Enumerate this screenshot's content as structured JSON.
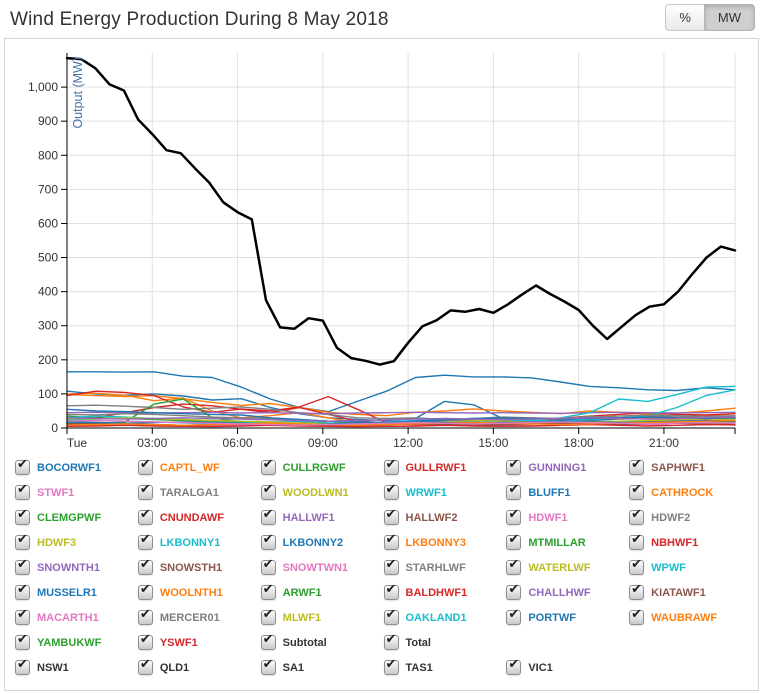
{
  "header": {
    "title": "Wind Energy Production During 8 May 2018",
    "unit_buttons": [
      {
        "label": "%",
        "active": false
      },
      {
        "label": "MW",
        "active": true
      }
    ]
  },
  "chart_data": {
    "type": "line",
    "title": "Wind Energy Production During 8 May 2018",
    "xlabel": "",
    "ylabel": "Output (MW)",
    "ylabel_color": "#4572a7",
    "ylim": [
      0,
      1100
    ],
    "x_end_hour": 23.5,
    "x_tick_hours": [
      0,
      3,
      6,
      9,
      12,
      15,
      18,
      21
    ],
    "x_tick_labels": [
      "Tue",
      "03:00",
      "06:00",
      "09:00",
      "12:00",
      "15:00",
      "18:00",
      "21:00"
    ],
    "y_ticks": [
      0,
      100,
      200,
      300,
      400,
      500,
      600,
      700,
      800,
      900,
      1000
    ],
    "y_tick_labels": [
      "0",
      "100",
      "200",
      "300",
      "400",
      "500",
      "600",
      "700",
      "800",
      "900",
      "1,000"
    ],
    "grid": true,
    "legend_position": "bottom",
    "total_series": {
      "name": "Total",
      "color": "#000000",
      "step_hours": 0.5,
      "values": [
        1085,
        1082,
        1055,
        1008,
        990,
        905,
        862,
        815,
        806,
        762,
        720,
        662,
        633,
        612,
        375,
        295,
        291,
        322,
        315,
        235,
        205,
        197,
        186,
        196,
        250,
        298,
        316,
        345,
        341,
        349,
        338,
        362,
        391,
        418,
        393,
        371,
        346,
        300,
        261,
        296,
        331,
        356,
        363,
        400,
        452,
        500,
        532,
        521
      ]
    },
    "farm_lines": [
      {
        "name": "blue-1",
        "color": "#1f77b4",
        "values": [
          165,
          165,
          164,
          165,
          152,
          148,
          120,
          85,
          60,
          48,
          78,
          108,
          148,
          155,
          150,
          150,
          147,
          135,
          122,
          118,
          112,
          110,
          118,
          112
        ]
      },
      {
        "name": "blue-2",
        "color": "#1f77b4",
        "values": [
          108,
          100,
          96,
          100,
          94,
          82,
          86,
          60,
          42,
          30,
          25,
          22,
          28,
          78,
          68,
          28,
          22,
          24,
          22,
          26,
          28,
          26,
          30,
          28
        ]
      },
      {
        "name": "orange-1",
        "color": "#ff7f0e",
        "values": [
          98,
          95,
          92,
          95,
          86,
          75,
          66,
          72,
          60,
          46,
          40,
          36,
          46,
          50,
          56,
          50,
          46,
          42,
          50,
          46,
          41,
          43,
          50,
          58
        ]
      },
      {
        "name": "orange-2",
        "color": "#ff7f0e",
        "values": [
          100,
          102,
          96,
          80,
          88,
          50,
          30,
          36,
          45,
          30,
          14,
          10,
          16,
          20,
          26,
          30,
          20,
          28,
          35,
          26,
          30,
          25,
          36,
          42
        ]
      },
      {
        "name": "red-1",
        "color": "#d62728",
        "values": [
          95,
          108,
          104,
          95,
          62,
          46,
          56,
          50,
          62,
          92,
          55,
          16,
          12,
          10,
          13,
          10,
          12,
          16,
          25,
          30,
          35,
          30,
          28,
          30
        ]
      },
      {
        "name": "red-2",
        "color": "#d62728",
        "values": [
          22,
          30,
          45,
          60,
          70,
          65,
          55,
          45,
          60,
          40,
          20,
          15,
          10,
          12,
          15,
          18,
          22,
          28,
          35,
          40,
          45,
          40,
          38,
          42
        ]
      },
      {
        "name": "gray-1",
        "color": "#7f7f7f",
        "values": [
          65,
          67,
          64,
          60,
          55,
          58,
          62,
          55,
          45,
          40,
          30,
          28,
          30,
          25,
          28,
          32,
          30,
          25,
          35,
          30,
          32,
          35,
          30,
          32
        ]
      },
      {
        "name": "purple-1",
        "color": "#9467bd",
        "values": [
          45,
          46,
          45,
          44,
          45,
          46,
          44,
          45,
          43,
          42,
          44,
          45,
          46,
          45,
          44,
          45,
          44,
          43,
          45,
          46,
          45,
          44,
          45,
          46
        ]
      },
      {
        "name": "green-1",
        "color": "#2ca02c",
        "values": [
          15,
          12,
          18,
          70,
          85,
          30,
          18,
          12,
          15,
          20,
          15,
          12,
          18,
          15,
          20,
          18,
          15,
          12,
          20,
          15,
          18,
          15,
          20,
          18
        ]
      },
      {
        "name": "green-2",
        "color": "#2ca02c",
        "values": [
          35,
          30,
          28,
          25,
          22,
          20,
          18,
          15,
          12,
          10,
          12,
          15,
          18,
          20,
          22,
          20,
          18,
          15,
          12,
          15,
          18,
          20,
          22,
          20
        ]
      },
      {
        "name": "cyan-1",
        "color": "#17becf",
        "values": [
          25,
          22,
          20,
          18,
          15,
          12,
          15,
          18,
          20,
          15,
          12,
          10,
          12,
          15,
          18,
          20,
          22,
          30,
          45,
          85,
          78,
          98,
          120,
          122
        ]
      },
      {
        "name": "cyan-2",
        "color": "#17becf",
        "values": [
          30,
          35,
          32,
          28,
          25,
          22,
          20,
          18,
          15,
          12,
          15,
          18,
          22,
          25,
          28,
          25,
          22,
          20,
          25,
          30,
          35,
          60,
          95,
          112
        ]
      },
      {
        "name": "olive-1",
        "color": "#bcbd22",
        "values": [
          28,
          26,
          30,
          28,
          25,
          22,
          20,
          18,
          15,
          12,
          14,
          16,
          18,
          20,
          22,
          20,
          18,
          16,
          18,
          20,
          22,
          24,
          26,
          25
        ]
      },
      {
        "name": "pink-1",
        "color": "#e377c2",
        "values": [
          10,
          8,
          12,
          10,
          8,
          6,
          8,
          10,
          12,
          8,
          6,
          5,
          6,
          8,
          10,
          8,
          6,
          8,
          10,
          12,
          10,
          8,
          10,
          12
        ]
      },
      {
        "name": "brown-1",
        "color": "#8c564b",
        "values": [
          12,
          14,
          12,
          10,
          8,
          10,
          12,
          10,
          8,
          6,
          8,
          10,
          12,
          10,
          8,
          10,
          12,
          14,
          12,
          10,
          12,
          14,
          12,
          10
        ]
      },
      {
        "name": "gray-2",
        "color": "#7f7f7f",
        "values": [
          40,
          38,
          42,
          40,
          36,
          32,
          30,
          28,
          25,
          20,
          18,
          16,
          18,
          22,
          25,
          28,
          30,
          28,
          32,
          35,
          38,
          36,
          34,
          36
        ]
      },
      {
        "name": "blue-3",
        "color": "#1f77b4",
        "values": [
          55,
          50,
          48,
          45,
          42,
          40,
          38,
          30,
          25,
          20,
          18,
          16,
          20,
          24,
          28,
          30,
          28,
          26,
          28,
          30,
          32,
          30,
          28,
          30
        ]
      },
      {
        "name": "purple-2",
        "color": "#9467bd",
        "values": [
          30,
          28,
          26,
          28,
          30,
          28,
          26,
          24,
          22,
          20,
          22,
          24,
          26,
          28,
          26,
          24,
          26,
          28,
          30,
          28,
          26,
          28,
          30,
          32
        ]
      },
      {
        "name": "red-3",
        "color": "#d62728",
        "values": [
          5,
          6,
          8,
          6,
          5,
          4,
          6,
          8,
          6,
          5,
          4,
          5,
          6,
          8,
          6,
          5,
          6,
          8,
          10,
          8,
          6,
          8,
          10,
          9
        ]
      },
      {
        "name": "blue-4",
        "color": "#1f77b4",
        "values": [
          18,
          16,
          14,
          16,
          18,
          16,
          14,
          12,
          10,
          12,
          14,
          16,
          18,
          16,
          14,
          16,
          18,
          20,
          18,
          16,
          18,
          20,
          22,
          20
        ]
      },
      {
        "name": "orange-3",
        "color": "#ff7f0e",
        "values": [
          8,
          10,
          12,
          10,
          8,
          10,
          12,
          14,
          12,
          10,
          8,
          10,
          12,
          14,
          16,
          14,
          12,
          10,
          12,
          14,
          16,
          18,
          20,
          22
        ]
      },
      {
        "name": "pink-2",
        "color": "#e377c2",
        "values": [
          20,
          22,
          20,
          18,
          16,
          14,
          12,
          10,
          8,
          10,
          12,
          14,
          16,
          14,
          12,
          14,
          16,
          18,
          16,
          14,
          12,
          14,
          16,
          15
        ]
      }
    ]
  },
  "legend": {
    "items": [
      {
        "label": "BOCORWF1",
        "color": "#1f77b4",
        "checked": true
      },
      {
        "label": "CAPTL_WF",
        "color": "#ff7f0e",
        "checked": true
      },
      {
        "label": "CULLRGWF",
        "color": "#2ca02c",
        "checked": true
      },
      {
        "label": "GULLRWF1",
        "color": "#d62728",
        "checked": true
      },
      {
        "label": "GUNNING1",
        "color": "#9467bd",
        "checked": true
      },
      {
        "label": "SAPHWF1",
        "color": "#8c564b",
        "checked": true
      },
      {
        "label": "STWF1",
        "color": "#e377c2",
        "checked": true
      },
      {
        "label": "TARALGA1",
        "color": "#7f7f7f",
        "checked": true
      },
      {
        "label": "WOODLWN1",
        "color": "#bcbd22",
        "checked": true
      },
      {
        "label": "WRWF1",
        "color": "#17becf",
        "checked": true
      },
      {
        "label": "BLUFF1",
        "color": "#1f77b4",
        "checked": true
      },
      {
        "label": "CATHROCK",
        "color": "#ff7f0e",
        "checked": true
      },
      {
        "label": "CLEMGPWF",
        "color": "#2ca02c",
        "checked": true
      },
      {
        "label": "CNUNDAWF",
        "color": "#d62728",
        "checked": true
      },
      {
        "label": "HALLWF1",
        "color": "#9467bd",
        "checked": true
      },
      {
        "label": "HALLWF2",
        "color": "#8c564b",
        "checked": true
      },
      {
        "label": "HDWF1",
        "color": "#e377c2",
        "checked": true
      },
      {
        "label": "HDWF2",
        "color": "#7f7f7f",
        "checked": true
      },
      {
        "label": "HDWF3",
        "color": "#bcbd22",
        "checked": true
      },
      {
        "label": "LKBONNY1",
        "color": "#17becf",
        "checked": true
      },
      {
        "label": "LKBONNY2",
        "color": "#1f77b4",
        "checked": true
      },
      {
        "label": "LKBONNY3",
        "color": "#ff7f0e",
        "checked": true
      },
      {
        "label": "MTMILLAR",
        "color": "#2ca02c",
        "checked": true
      },
      {
        "label": "NBHWF1",
        "color": "#d62728",
        "checked": true
      },
      {
        "label": "SNOWNTH1",
        "color": "#9467bd",
        "checked": true
      },
      {
        "label": "SNOWSTH1",
        "color": "#8c564b",
        "checked": true
      },
      {
        "label": "SNOWTWN1",
        "color": "#e377c2",
        "checked": true
      },
      {
        "label": "STARHLWF",
        "color": "#7f7f7f",
        "checked": true
      },
      {
        "label": "WATERLWF",
        "color": "#bcbd22",
        "checked": true
      },
      {
        "label": "WPWF",
        "color": "#17becf",
        "checked": true
      },
      {
        "label": "MUSSELR1",
        "color": "#1f77b4",
        "checked": true
      },
      {
        "label": "WOOLNTH1",
        "color": "#ff7f0e",
        "checked": true
      },
      {
        "label": "ARWF1",
        "color": "#2ca02c",
        "checked": true
      },
      {
        "label": "BALDHWF1",
        "color": "#d62728",
        "checked": true
      },
      {
        "label": "CHALLHWF",
        "color": "#9467bd",
        "checked": true
      },
      {
        "label": "KIATAWF1",
        "color": "#8c564b",
        "checked": true
      },
      {
        "label": "MACARTH1",
        "color": "#e377c2",
        "checked": true
      },
      {
        "label": "MERCER01",
        "color": "#7f7f7f",
        "checked": true
      },
      {
        "label": "MLWF1",
        "color": "#bcbd22",
        "checked": true
      },
      {
        "label": "OAKLAND1",
        "color": "#17becf",
        "checked": true
      },
      {
        "label": "PORTWF",
        "color": "#1f77b4",
        "checked": true
      },
      {
        "label": "WAUBRAWF",
        "color": "#ff7f0e",
        "checked": true
      },
      {
        "label": "YAMBUKWF",
        "color": "#2ca02c",
        "checked": true
      },
      {
        "label": "YSWF1",
        "color": "#d62728",
        "checked": true
      },
      {
        "label": "Subtotal",
        "color": "#333333",
        "checked": true
      },
      {
        "label": "Total",
        "color": "#333333",
        "checked": true
      },
      {
        "spacer": true
      },
      {
        "spacer": true
      },
      {
        "label": "NSW1",
        "color": "#333333",
        "checked": true
      },
      {
        "label": "QLD1",
        "color": "#333333",
        "checked": true
      },
      {
        "label": "SA1",
        "color": "#333333",
        "checked": true
      },
      {
        "label": "TAS1",
        "color": "#333333",
        "checked": true
      },
      {
        "label": "VIC1",
        "color": "#333333",
        "checked": true
      }
    ]
  },
  "colors": {
    "axis": "#000000",
    "grid": "#e0e0e0",
    "tick_label": "#333333",
    "panel_border": "#d4d4d4"
  }
}
